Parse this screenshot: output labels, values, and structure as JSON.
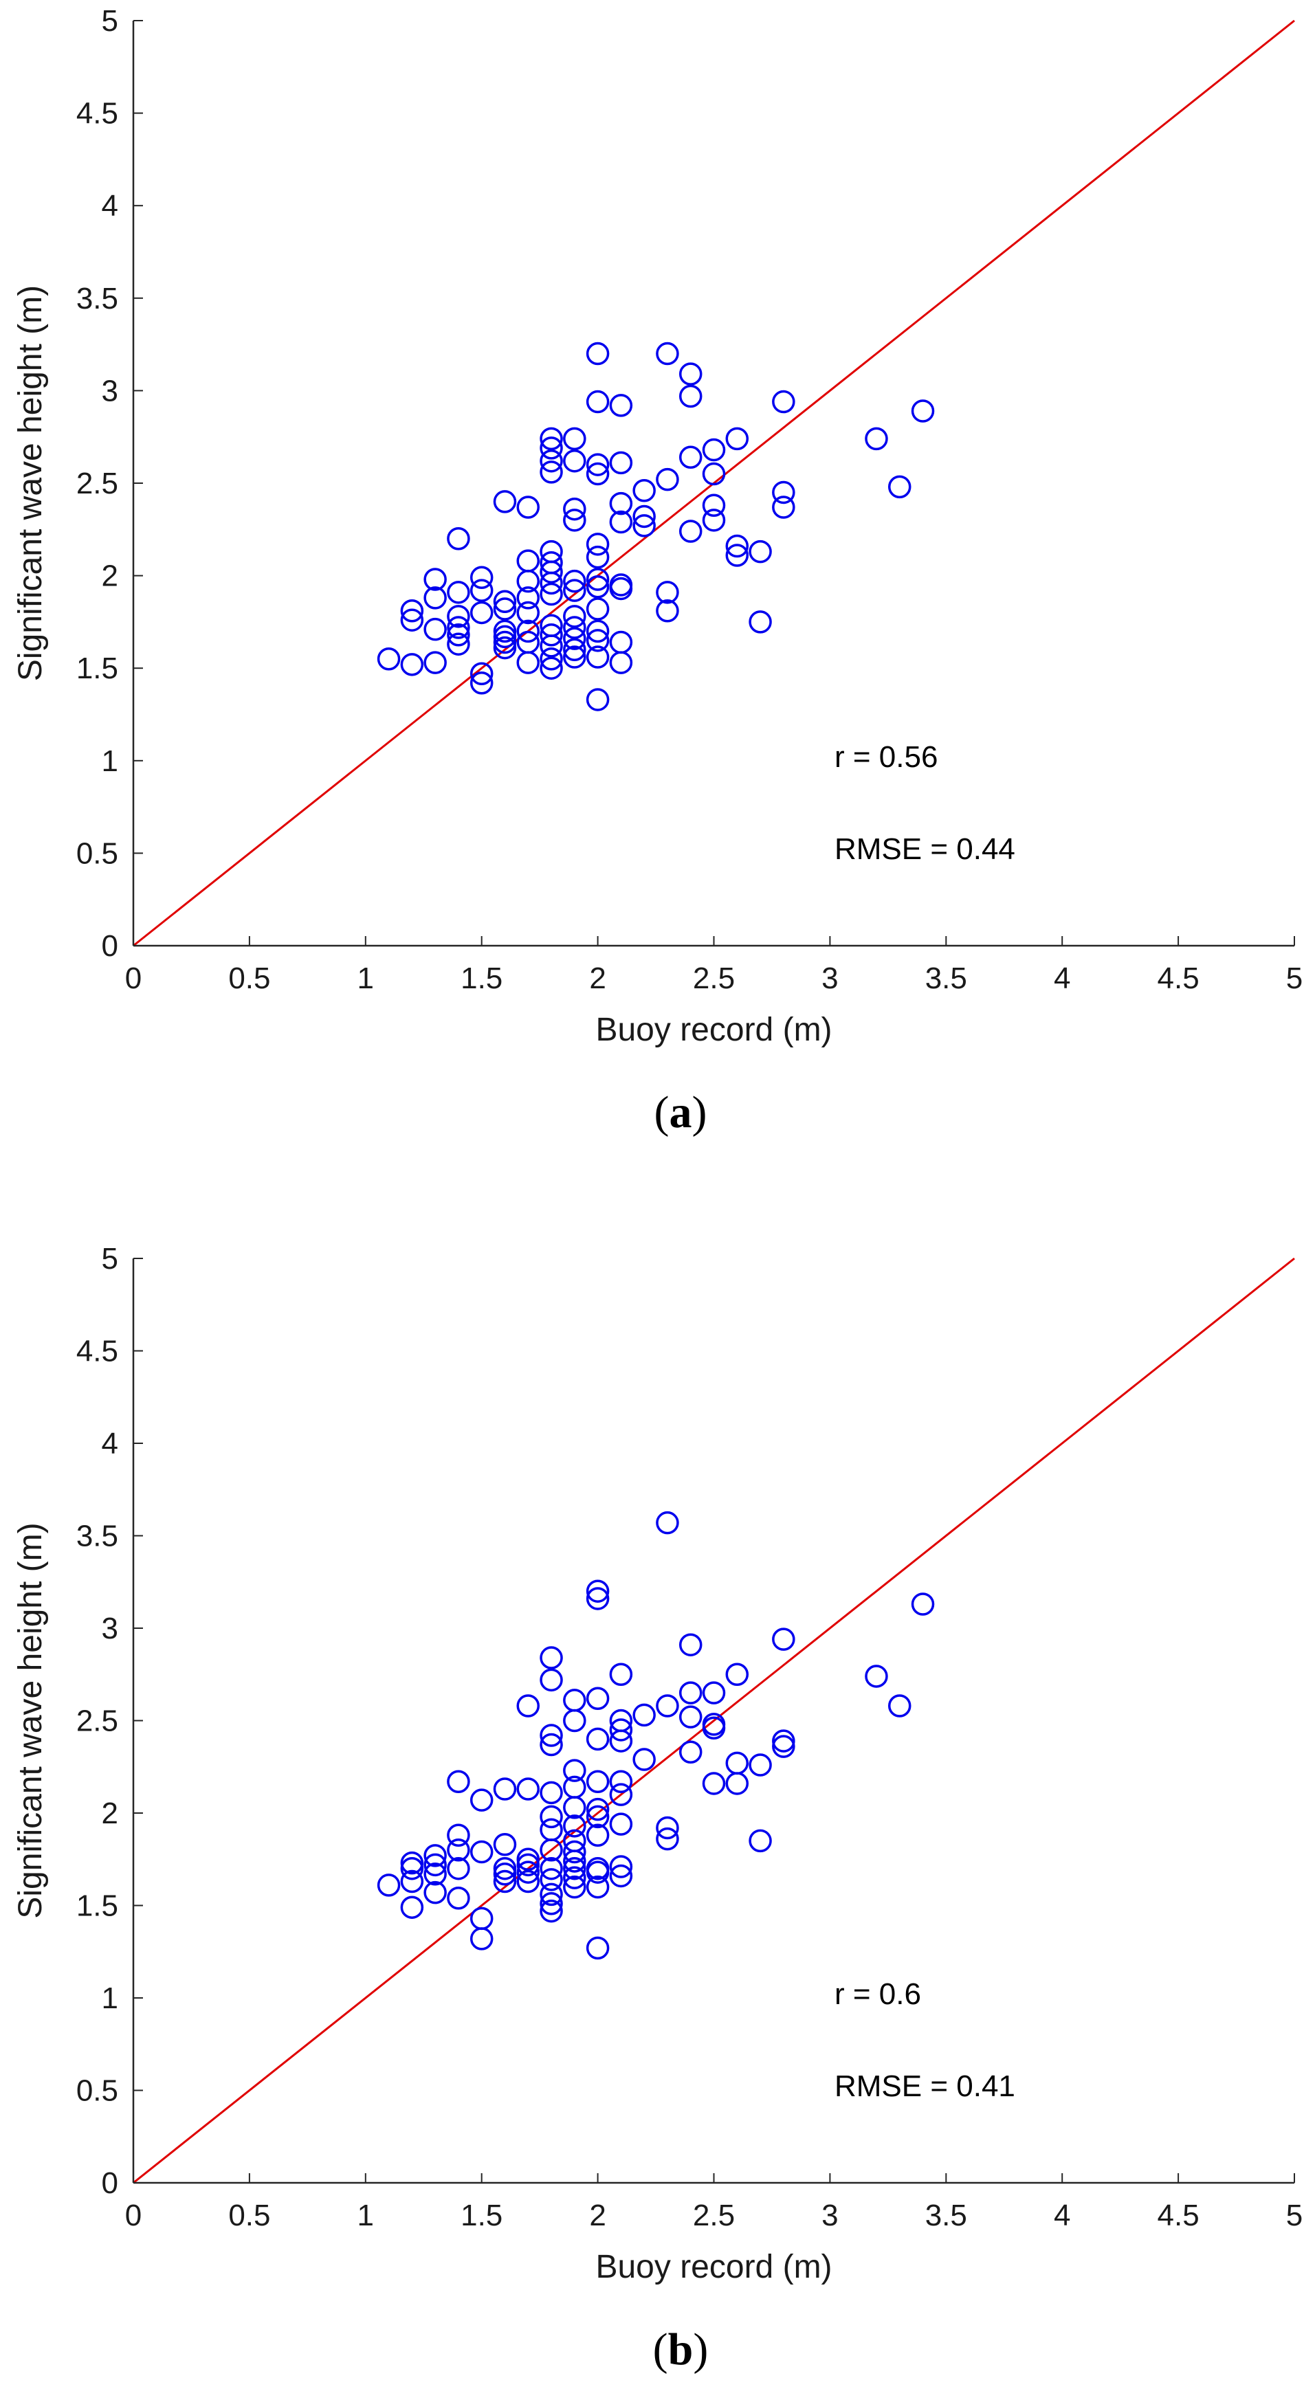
{
  "chart_data": [
    {
      "type": "scatter",
      "panel_label": "(a)",
      "panel_letter": "a",
      "xlabel": "Buoy record (m)",
      "ylabel": "Significant wave height (m)",
      "xlim": [
        0,
        5
      ],
      "ylim": [
        0,
        5
      ],
      "ticks": [
        "0",
        "0.5",
        "1",
        "1.5",
        "2",
        "2.5",
        "3",
        "3.5",
        "4",
        "4.5",
        "5"
      ],
      "tick_values": [
        0,
        0.5,
        1,
        1.5,
        2,
        2.5,
        3,
        3.5,
        4,
        4.5,
        5
      ],
      "annotations": [
        "r = 0.56",
        "RMSE = 0.44"
      ],
      "reference_line": {
        "from": [
          0,
          0
        ],
        "to": [
          5,
          5
        ],
        "color": "#e00000"
      },
      "marker_color": "#0000ee",
      "points": [
        [
          1.1,
          1.55
        ],
        [
          1.2,
          1.52
        ],
        [
          1.2,
          1.76
        ],
        [
          1.2,
          1.81
        ],
        [
          1.3,
          1.53
        ],
        [
          1.3,
          1.71
        ],
        [
          1.3,
          1.88
        ],
        [
          1.3,
          1.98
        ],
        [
          1.4,
          1.63
        ],
        [
          1.4,
          1.68
        ],
        [
          1.4,
          1.72
        ],
        [
          1.4,
          1.78
        ],
        [
          1.4,
          1.91
        ],
        [
          1.4,
          2.2
        ],
        [
          1.5,
          1.42
        ],
        [
          1.5,
          1.47
        ],
        [
          1.5,
          1.8
        ],
        [
          1.5,
          1.92
        ],
        [
          1.5,
          1.99
        ],
        [
          1.6,
          1.61
        ],
        [
          1.6,
          1.64
        ],
        [
          1.6,
          1.67
        ],
        [
          1.6,
          1.7
        ],
        [
          1.6,
          1.82
        ],
        [
          1.6,
          1.86
        ],
        [
          1.6,
          2.4
        ],
        [
          1.7,
          1.53
        ],
        [
          1.7,
          1.64
        ],
        [
          1.7,
          1.7
        ],
        [
          1.7,
          1.8
        ],
        [
          1.7,
          1.88
        ],
        [
          1.7,
          1.97
        ],
        [
          1.7,
          2.08
        ],
        [
          1.7,
          2.37
        ],
        [
          1.8,
          1.5
        ],
        [
          1.8,
          1.55
        ],
        [
          1.8,
          1.62
        ],
        [
          1.8,
          1.68
        ],
        [
          1.8,
          1.73
        ],
        [
          1.8,
          1.9
        ],
        [
          1.8,
          1.96
        ],
        [
          1.8,
          2.02
        ],
        [
          1.8,
          2.07
        ],
        [
          1.8,
          2.13
        ],
        [
          1.8,
          2.56
        ],
        [
          1.8,
          2.62
        ],
        [
          1.8,
          2.69
        ],
        [
          1.8,
          2.74
        ],
        [
          1.9,
          1.56
        ],
        [
          1.9,
          1.6
        ],
        [
          1.9,
          1.66
        ],
        [
          1.9,
          1.72
        ],
        [
          1.9,
          1.78
        ],
        [
          1.9,
          1.92
        ],
        [
          1.9,
          1.97
        ],
        [
          1.9,
          2.3
        ],
        [
          1.9,
          2.36
        ],
        [
          1.9,
          2.62
        ],
        [
          1.9,
          2.74
        ],
        [
          2.0,
          1.33
        ],
        [
          2.0,
          1.56
        ],
        [
          2.0,
          1.65
        ],
        [
          2.0,
          1.7
        ],
        [
          2.0,
          1.82
        ],
        [
          2.0,
          1.94
        ],
        [
          2.0,
          1.98
        ],
        [
          2.0,
          2.1
        ],
        [
          2.0,
          2.17
        ],
        [
          2.0,
          2.55
        ],
        [
          2.0,
          2.6
        ],
        [
          2.0,
          2.94
        ],
        [
          2.0,
          3.2
        ],
        [
          2.1,
          1.53
        ],
        [
          2.1,
          1.64
        ],
        [
          2.1,
          1.93
        ],
        [
          2.1,
          1.95
        ],
        [
          2.1,
          2.29
        ],
        [
          2.1,
          2.39
        ],
        [
          2.1,
          2.61
        ],
        [
          2.1,
          2.92
        ],
        [
          2.2,
          2.27
        ],
        [
          2.2,
          2.32
        ],
        [
          2.2,
          2.46
        ],
        [
          2.3,
          1.81
        ],
        [
          2.3,
          1.91
        ],
        [
          2.3,
          2.52
        ],
        [
          2.3,
          3.2
        ],
        [
          2.4,
          2.24
        ],
        [
          2.4,
          2.64
        ],
        [
          2.4,
          2.97
        ],
        [
          2.4,
          3.09
        ],
        [
          2.5,
          2.3
        ],
        [
          2.5,
          2.38
        ],
        [
          2.5,
          2.55
        ],
        [
          2.5,
          2.68
        ],
        [
          2.6,
          2.11
        ],
        [
          2.6,
          2.16
        ],
        [
          2.6,
          2.74
        ],
        [
          2.7,
          1.75
        ],
        [
          2.7,
          2.13
        ],
        [
          2.8,
          2.37
        ],
        [
          2.8,
          2.45
        ],
        [
          2.8,
          2.94
        ],
        [
          3.2,
          2.74
        ],
        [
          3.3,
          2.48
        ],
        [
          3.4,
          2.89
        ]
      ]
    },
    {
      "type": "scatter",
      "panel_label": "(b)",
      "panel_letter": "b",
      "xlabel": "Buoy record (m)",
      "ylabel": "Significant wave height (m)",
      "xlim": [
        0,
        5
      ],
      "ylim": [
        0,
        5
      ],
      "ticks": [
        "0",
        "0.5",
        "1",
        "1.5",
        "2",
        "2.5",
        "3",
        "3.5",
        "4",
        "4.5",
        "5"
      ],
      "tick_values": [
        0,
        0.5,
        1,
        1.5,
        2,
        2.5,
        3,
        3.5,
        4,
        4.5,
        5
      ],
      "annotations": [
        "r = 0.6",
        "RMSE = 0.41"
      ],
      "reference_line": {
        "from": [
          0,
          0
        ],
        "to": [
          5,
          5
        ],
        "color": "#e00000"
      },
      "marker_color": "#0000ee",
      "points": [
        [
          1.1,
          1.61
        ],
        [
          1.2,
          1.49
        ],
        [
          1.2,
          1.63
        ],
        [
          1.2,
          1.7
        ],
        [
          1.2,
          1.73
        ],
        [
          1.3,
          1.57
        ],
        [
          1.3,
          1.67
        ],
        [
          1.3,
          1.72
        ],
        [
          1.3,
          1.77
        ],
        [
          1.4,
          1.54
        ],
        [
          1.4,
          1.7
        ],
        [
          1.4,
          1.8
        ],
        [
          1.4,
          1.88
        ],
        [
          1.4,
          2.17
        ],
        [
          1.5,
          1.32
        ],
        [
          1.5,
          1.43
        ],
        [
          1.5,
          1.79
        ],
        [
          1.5,
          2.07
        ],
        [
          1.6,
          1.63
        ],
        [
          1.6,
          1.67
        ],
        [
          1.6,
          1.7
        ],
        [
          1.6,
          1.83
        ],
        [
          1.6,
          2.13
        ],
        [
          1.7,
          1.63
        ],
        [
          1.7,
          1.68
        ],
        [
          1.7,
          1.72
        ],
        [
          1.7,
          1.75
        ],
        [
          1.7,
          2.13
        ],
        [
          1.7,
          2.58
        ],
        [
          1.8,
          1.47
        ],
        [
          1.8,
          1.51
        ],
        [
          1.8,
          1.56
        ],
        [
          1.8,
          1.64
        ],
        [
          1.8,
          1.7
        ],
        [
          1.8,
          1.8
        ],
        [
          1.8,
          1.91
        ],
        [
          1.8,
          1.98
        ],
        [
          1.8,
          2.11
        ],
        [
          1.8,
          2.37
        ],
        [
          1.8,
          2.42
        ],
        [
          1.8,
          2.72
        ],
        [
          1.8,
          2.84
        ],
        [
          1.9,
          1.6
        ],
        [
          1.9,
          1.65
        ],
        [
          1.9,
          1.7
        ],
        [
          1.9,
          1.74
        ],
        [
          1.9,
          1.79
        ],
        [
          1.9,
          1.85
        ],
        [
          1.9,
          1.93
        ],
        [
          1.9,
          2.03
        ],
        [
          1.9,
          2.14
        ],
        [
          1.9,
          2.23
        ],
        [
          1.9,
          2.5
        ],
        [
          1.9,
          2.61
        ],
        [
          2.0,
          1.27
        ],
        [
          2.0,
          1.6
        ],
        [
          2.0,
          1.68
        ],
        [
          2.0,
          1.7
        ],
        [
          2.0,
          1.88
        ],
        [
          2.0,
          1.98
        ],
        [
          2.0,
          2.02
        ],
        [
          2.0,
          2.17
        ],
        [
          2.0,
          2.4
        ],
        [
          2.0,
          2.62
        ],
        [
          2.0,
          3.16
        ],
        [
          2.0,
          3.2
        ],
        [
          2.1,
          1.66
        ],
        [
          2.1,
          1.71
        ],
        [
          2.1,
          1.94
        ],
        [
          2.1,
          2.1
        ],
        [
          2.1,
          2.17
        ],
        [
          2.1,
          2.39
        ],
        [
          2.1,
          2.45
        ],
        [
          2.1,
          2.5
        ],
        [
          2.1,
          2.75
        ],
        [
          2.2,
          2.29
        ],
        [
          2.2,
          2.53
        ],
        [
          2.3,
          1.86
        ],
        [
          2.3,
          1.92
        ],
        [
          2.3,
          2.58
        ],
        [
          2.3,
          3.57
        ],
        [
          2.4,
          2.33
        ],
        [
          2.4,
          2.52
        ],
        [
          2.4,
          2.65
        ],
        [
          2.4,
          2.91
        ],
        [
          2.5,
          2.16
        ],
        [
          2.5,
          2.46
        ],
        [
          2.5,
          2.48
        ],
        [
          2.5,
          2.65
        ],
        [
          2.6,
          2.16
        ],
        [
          2.6,
          2.27
        ],
        [
          2.6,
          2.75
        ],
        [
          2.7,
          1.85
        ],
        [
          2.7,
          2.26
        ],
        [
          2.8,
          2.36
        ],
        [
          2.8,
          2.39
        ],
        [
          2.8,
          2.94
        ],
        [
          3.2,
          2.74
        ],
        [
          3.3,
          2.58
        ],
        [
          3.4,
          3.13
        ]
      ]
    }
  ]
}
